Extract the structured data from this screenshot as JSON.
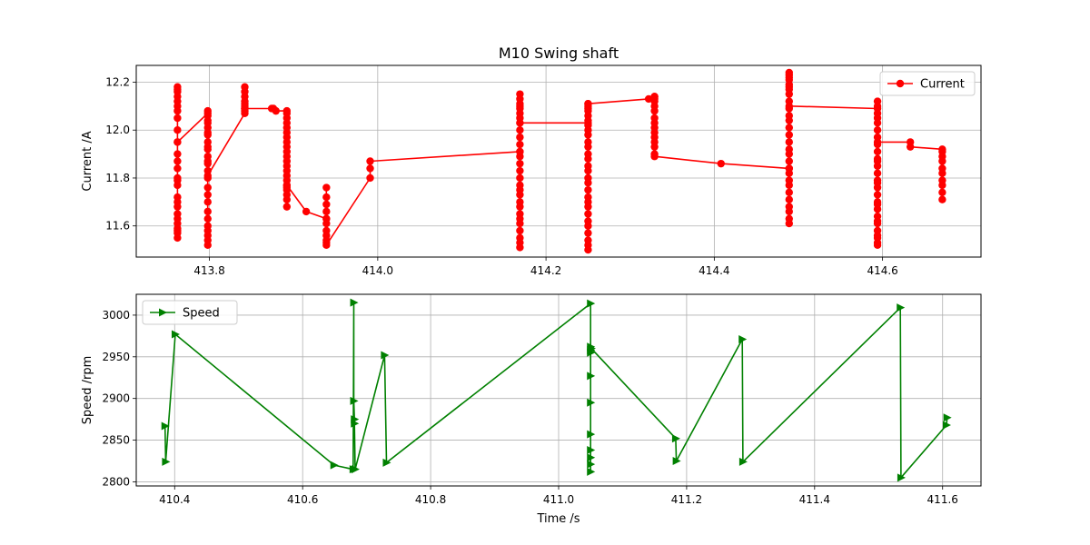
{
  "title": "M10 Swing shaft",
  "chart_data": [
    {
      "type": "line",
      "title": "M10 Swing shaft",
      "xlabel": "",
      "ylabel": "Current /A",
      "xlim": [
        413.713,
        414.717
      ],
      "ylim": [
        11.47,
        12.27
      ],
      "xticks": [
        "413.8",
        "414.0",
        "414.2",
        "414.4",
        "414.6"
      ],
      "yticks": [
        "11.6",
        "11.8",
        "12.0",
        "12.2"
      ],
      "grid": true,
      "legend": "top-right",
      "series": [
        {
          "name": "Current",
          "color": "#ff0000",
          "marker": "circle",
          "x": [
            413.762,
            413.762,
            413.762,
            413.762,
            413.762,
            413.762,
            413.762,
            413.762,
            413.762,
            413.762,
            413.762,
            413.762,
            413.762,
            413.762,
            413.762,
            413.762,
            413.762,
            413.762,
            413.762,
            413.762,
            413.762,
            413.762,
            413.762,
            413.762,
            413.762,
            413.762,
            413.762,
            413.798,
            413.798,
            413.798,
            413.798,
            413.798,
            413.798,
            413.798,
            413.798,
            413.798,
            413.798,
            413.798,
            413.798,
            413.798,
            413.798,
            413.798,
            413.798,
            413.798,
            413.798,
            413.798,
            413.798,
            413.798,
            413.798,
            413.798,
            413.798,
            413.798,
            413.798,
            413.798,
            413.842,
            413.842,
            413.842,
            413.842,
            413.842,
            413.842,
            413.842,
            413.842,
            413.842,
            413.842,
            413.874,
            413.876,
            413.879,
            413.892,
            413.892,
            413.892,
            413.892,
            413.892,
            413.892,
            413.892,
            413.892,
            413.892,
            413.892,
            413.892,
            413.892,
            413.892,
            413.892,
            413.892,
            413.892,
            413.892,
            413.892,
            413.892,
            413.892,
            413.892,
            413.892,
            413.892,
            413.915,
            413.939,
            413.939,
            413.939,
            413.939,
            413.939,
            413.939,
            413.939,
            413.939,
            413.939,
            413.939,
            413.939,
            413.939,
            413.991,
            413.991,
            413.991,
            414.169,
            414.169,
            414.169,
            414.169,
            414.169,
            414.169,
            414.169,
            414.169,
            414.169,
            414.169,
            414.169,
            414.169,
            414.169,
            414.169,
            414.169,
            414.169,
            414.169,
            414.169,
            414.169,
            414.169,
            414.169,
            414.169,
            414.169,
            414.169,
            414.169,
            414.169,
            414.169,
            414.169,
            414.169,
            414.169,
            414.25,
            414.25,
            414.25,
            414.25,
            414.25,
            414.25,
            414.25,
            414.25,
            414.25,
            414.25,
            414.25,
            414.25,
            414.25,
            414.25,
            414.25,
            414.25,
            414.25,
            414.25,
            414.25,
            414.25,
            414.25,
            414.25,
            414.25,
            414.25,
            414.25,
            414.25,
            414.25,
            414.25,
            414.25,
            414.25,
            414.322,
            414.329,
            414.329,
            414.329,
            414.329,
            414.329,
            414.329,
            414.329,
            414.329,
            414.329,
            414.329,
            414.329,
            414.329,
            414.329,
            414.329,
            414.329,
            414.408,
            414.489,
            414.489,
            414.489,
            414.489,
            414.489,
            414.489,
            414.489,
            414.489,
            414.489,
            414.489,
            414.489,
            414.489,
            414.489,
            414.489,
            414.489,
            414.489,
            414.489,
            414.489,
            414.489,
            414.489,
            414.489,
            414.489,
            414.489,
            414.489,
            414.489,
            414.489,
            414.489,
            414.489,
            414.489,
            414.489,
            414.594,
            414.594,
            414.594,
            414.594,
            414.594,
            414.594,
            414.594,
            414.594,
            414.594,
            414.594,
            414.594,
            414.594,
            414.594,
            414.594,
            414.594,
            414.594,
            414.594,
            414.594,
            414.594,
            414.594,
            414.594,
            414.594,
            414.594,
            414.594,
            414.594,
            414.594,
            414.594,
            414.594,
            414.594,
            414.594,
            414.633,
            414.633,
            414.671,
            414.671,
            414.671,
            414.671,
            414.671,
            414.671,
            414.671,
            414.671,
            414.671,
            414.671
          ],
          "y": [
            12.08,
            12.18,
            12.17,
            12.16,
            12.14,
            12.12,
            12.1,
            12.05,
            12.0,
            11.95,
            11.9,
            11.87,
            11.84,
            11.79,
            11.77,
            11.72,
            11.68,
            11.65,
            11.61,
            11.59,
            11.57,
            11.55,
            11.58,
            11.63,
            11.7,
            11.8,
            11.95,
            12.07,
            11.52,
            11.54,
            11.56,
            11.58,
            11.6,
            11.63,
            11.66,
            11.7,
            11.73,
            11.76,
            11.8,
            11.83,
            11.86,
            11.89,
            11.92,
            11.95,
            11.98,
            12.01,
            12.03,
            12.06,
            12.08,
            12.04,
            11.99,
            11.93,
            11.87,
            11.81,
            12.07,
            12.18,
            12.16,
            12.14,
            12.12,
            12.1,
            12.08,
            12.09,
            12.11,
            12.09,
            12.09,
            12.09,
            12.08,
            12.08,
            12.07,
            12.05,
            12.03,
            12.01,
            11.99,
            11.97,
            11.95,
            11.93,
            11.91,
            11.89,
            11.87,
            11.85,
            11.83,
            11.81,
            11.79,
            11.77,
            11.75,
            11.73,
            11.71,
            11.68,
            11.76,
            11.77,
            11.66,
            11.63,
            11.76,
            11.72,
            11.69,
            11.66,
            11.63,
            11.61,
            11.58,
            11.56,
            11.54,
            11.53,
            11.52,
            11.8,
            11.84,
            11.87,
            11.91,
            11.51,
            11.53,
            11.55,
            11.58,
            11.61,
            11.63,
            11.65,
            11.68,
            11.7,
            11.73,
            11.75,
            11.77,
            11.8,
            11.83,
            11.86,
            11.89,
            11.91,
            11.94,
            11.97,
            12.0,
            12.03,
            12.05,
            12.07,
            12.09,
            12.11,
            12.13,
            12.15,
            12.1,
            12.03,
            12.03,
            11.5,
            11.52,
            11.54,
            11.57,
            11.6,
            11.62,
            11.65,
            11.68,
            11.7,
            11.72,
            11.75,
            11.78,
            11.8,
            11.83,
            11.85,
            11.88,
            11.9,
            11.93,
            11.95,
            11.98,
            12.0,
            12.02,
            12.04,
            12.06,
            12.08,
            12.1,
            12.11,
            12.09,
            12.11,
            12.13,
            12.14,
            12.14,
            12.13,
            12.12,
            12.1,
            12.08,
            12.05,
            12.03,
            12.01,
            11.99,
            11.97,
            11.95,
            11.93,
            11.9,
            11.89,
            11.86,
            11.84,
            11.61,
            11.63,
            11.66,
            11.68,
            11.71,
            11.74,
            11.77,
            11.79,
            11.82,
            11.84,
            11.87,
            11.9,
            11.92,
            11.95,
            11.98,
            12.01,
            12.04,
            12.06,
            12.09,
            12.12,
            12.15,
            12.17,
            12.19,
            12.21,
            12.23,
            12.24,
            12.22,
            12.18,
            12.1,
            12.09,
            12.12,
            12.1,
            12.07,
            12.05,
            12.03,
            12.0,
            11.97,
            11.94,
            11.91,
            11.88,
            11.85,
            11.82,
            11.79,
            11.76,
            11.73,
            11.7,
            11.67,
            11.64,
            11.61,
            11.58,
            11.55,
            11.53,
            11.52,
            11.56,
            11.62,
            11.69,
            11.78,
            11.87,
            11.95,
            11.95,
            11.93,
            11.92,
            11.91,
            11.89,
            11.87,
            11.84,
            11.82,
            11.79,
            11.77,
            11.74,
            11.71
          ]
        }
      ]
    },
    {
      "type": "line",
      "title": "",
      "xlabel": "Time /s",
      "ylabel": "Speed /rpm",
      "xlim": [
        410.34,
        411.66
      ],
      "ylim": [
        2795,
        3025
      ],
      "xticks": [
        "410.4",
        "410.6",
        "410.8",
        "411.0",
        "411.2",
        "411.4",
        "411.6"
      ],
      "yticks": [
        "2800",
        "2850",
        "2900",
        "2950",
        "3000"
      ],
      "grid": true,
      "legend": "top-left",
      "series": [
        {
          "name": "Speed",
          "color": "#008000",
          "marker": "triangle-right",
          "x": [
            410.385,
            410.386,
            410.401,
            410.649,
            410.679,
            410.68,
            410.68,
            410.681,
            410.681,
            410.682,
            410.728,
            410.731,
            411.05,
            411.05,
            411.05,
            411.05,
            411.05,
            411.05,
            411.05,
            411.05,
            411.05,
            411.05,
            411.05,
            411.051,
            411.183,
            411.184,
            411.287,
            411.288,
            411.534,
            411.535,
            411.606,
            411.607
          ],
          "y": [
            2867,
            2824,
            2977,
            2820,
            2815,
            3015,
            2897,
            2875,
            2870,
            2815,
            2952,
            2823,
            3014,
            2812,
            2821,
            2829,
            2838,
            2857,
            2895,
            2927,
            2955,
            2962,
            2958,
            2960,
            2852,
            2825,
            2971,
            2824,
            3009,
            2805,
            2868,
            2877
          ]
        }
      ]
    }
  ]
}
